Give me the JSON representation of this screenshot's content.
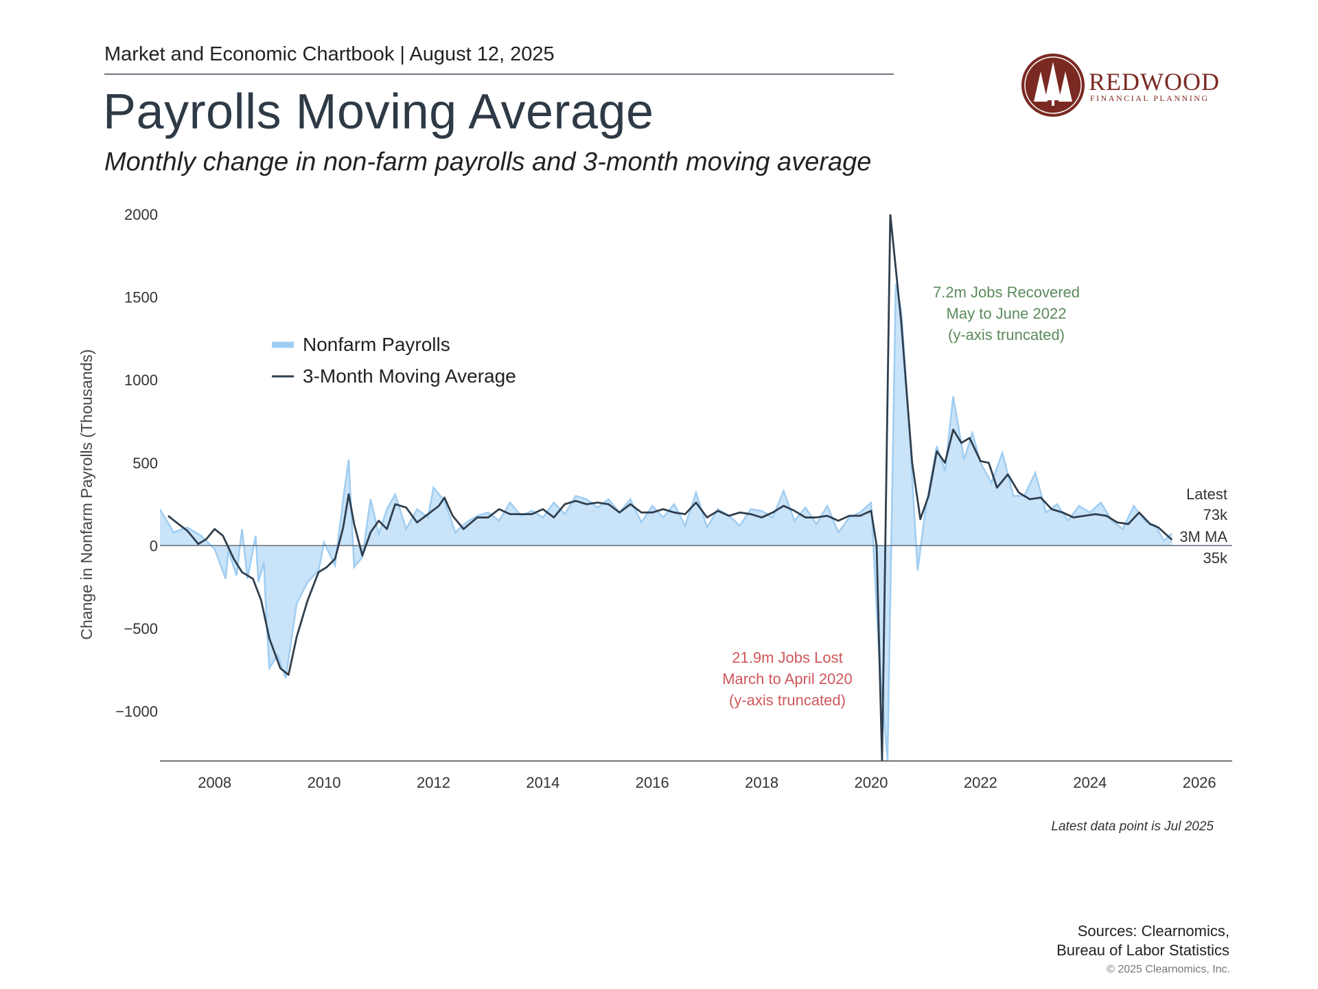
{
  "header": {
    "chartbook": "Market and Economic Chartbook | August 12, 2025",
    "title": "Payrolls Moving Average",
    "subtitle": "Monthly change in non-farm payrolls and 3-month moving average"
  },
  "logo": {
    "name": "REDWOOD",
    "tagline": "FINANCIAL PLANNING",
    "color": "#7a2a22"
  },
  "footer": {
    "latest_note": "Latest data point is Jul 2025",
    "sources_line1": "Sources: Clearnomics,",
    "sources_line2": "Bureau of Labor Statistics",
    "copyright": "© 2025 Clearnomics, Inc."
  },
  "chart_data": {
    "type": "area",
    "ylabel": "Change in Nonfarm Payrolls (Thousands)",
    "ylim": [
      -1300,
      2000
    ],
    "xlim": [
      2007.0,
      2026.6
    ],
    "yticks": [
      2000,
      1500,
      1000,
      500,
      0,
      -500,
      -1000
    ],
    "ytick_labels": [
      "2000",
      "1500",
      "1000",
      "500",
      "0",
      "−500",
      "−1000"
    ],
    "xticks": [
      2008,
      2010,
      2012,
      2014,
      2016,
      2018,
      2020,
      2022,
      2024,
      2026
    ],
    "xtick_labels": [
      "2008",
      "2010",
      "2012",
      "2014",
      "2016",
      "2018",
      "2020",
      "2022",
      "2024",
      "2026"
    ],
    "grid": false,
    "legend": {
      "position": "upper-left",
      "entries": [
        "Nonfarm Payrolls",
        "3-Month Moving Average"
      ]
    },
    "colors": {
      "payrolls_fill": "#c9e3f8",
      "payrolls_line": "#9fcdf2",
      "ma_line": "#2f3e4d",
      "loss_text": "#d0575a",
      "gain_text": "#5a8a5a"
    },
    "annotations": {
      "gain": [
        "7.2m Jobs Recovered",
        "May to June 2022",
        "(y-axis truncated)"
      ],
      "loss": [
        "21.9m Jobs Lost",
        "March to April 2020",
        "(y-axis truncated)"
      ],
      "latest": [
        "Latest",
        "73k",
        "3M MA",
        "35k"
      ]
    },
    "series": [
      {
        "name": "Nonfarm Payrolls",
        "points": [
          [
            2007.0,
            220
          ],
          [
            2007.25,
            80
          ],
          [
            2007.5,
            110
          ],
          [
            2007.75,
            60
          ],
          [
            2008.0,
            -20
          ],
          [
            2008.25,
            -30
          ],
          [
            2008.5,
            100
          ],
          [
            2008.75,
            60
          ],
          [
            2008.9,
            -100
          ],
          [
            2008.2,
            -200
          ],
          [
            2008.4,
            -180
          ],
          [
            2008.6,
            -200
          ],
          [
            2008.8,
            -220
          ],
          [
            2008.95,
            -470
          ],
          [
            2009.0,
            -740
          ],
          [
            2009.15,
            -660
          ],
          [
            2009.3,
            -800
          ],
          [
            2009.5,
            -350
          ],
          [
            2009.7,
            -220
          ],
          [
            2009.9,
            -150
          ],
          [
            2010.0,
            20
          ],
          [
            2010.2,
            -120
          ],
          [
            2010.35,
            280
          ],
          [
            2010.45,
            520
          ],
          [
            2010.55,
            -130
          ],
          [
            2010.7,
            -70
          ],
          [
            2010.85,
            280
          ],
          [
            2011.0,
            70
          ],
          [
            2011.15,
            220
          ],
          [
            2011.3,
            310
          ],
          [
            2011.5,
            100
          ],
          [
            2011.7,
            220
          ],
          [
            2011.9,
            170
          ],
          [
            2012.0,
            350
          ],
          [
            2012.2,
            270
          ],
          [
            2012.4,
            80
          ],
          [
            2012.6,
            140
          ],
          [
            2012.8,
            180
          ],
          [
            2013.0,
            200
          ],
          [
            2013.2,
            150
          ],
          [
            2013.4,
            260
          ],
          [
            2013.6,
            180
          ],
          [
            2013.8,
            210
          ],
          [
            2014.0,
            170
          ],
          [
            2014.2,
            260
          ],
          [
            2014.4,
            190
          ],
          [
            2014.6,
            300
          ],
          [
            2014.8,
            280
          ],
          [
            2015.0,
            230
          ],
          [
            2015.2,
            280
          ],
          [
            2015.4,
            200
          ],
          [
            2015.6,
            280
          ],
          [
            2015.8,
            140
          ],
          [
            2016.0,
            240
          ],
          [
            2016.2,
            170
          ],
          [
            2016.4,
            250
          ],
          [
            2016.6,
            120
          ],
          [
            2016.8,
            320
          ],
          [
            2017.0,
            110
          ],
          [
            2017.2,
            220
          ],
          [
            2017.4,
            180
          ],
          [
            2017.6,
            120
          ],
          [
            2017.8,
            220
          ],
          [
            2018.0,
            210
          ],
          [
            2018.2,
            170
          ],
          [
            2018.4,
            330
          ],
          [
            2018.6,
            150
          ],
          [
            2018.8,
            230
          ],
          [
            2019.0,
            130
          ],
          [
            2019.2,
            240
          ],
          [
            2019.4,
            80
          ],
          [
            2019.6,
            170
          ],
          [
            2019.8,
            200
          ],
          [
            2020.0,
            260
          ],
          [
            2020.15,
            -700
          ],
          [
            2020.3,
            -1300
          ],
          [
            2020.45,
            1580
          ],
          [
            2020.55,
            1420
          ],
          [
            2020.7,
            700
          ],
          [
            2020.85,
            -150
          ],
          [
            2021.0,
            230
          ],
          [
            2021.2,
            600
          ],
          [
            2021.35,
            450
          ],
          [
            2021.5,
            900
          ],
          [
            2021.7,
            520
          ],
          [
            2021.85,
            680
          ],
          [
            2022.0,
            500
          ],
          [
            2022.2,
            380
          ],
          [
            2022.4,
            560
          ],
          [
            2022.6,
            300
          ],
          [
            2022.8,
            300
          ],
          [
            2023.0,
            440
          ],
          [
            2023.2,
            200
          ],
          [
            2023.4,
            250
          ],
          [
            2023.6,
            150
          ],
          [
            2023.8,
            240
          ],
          [
            2024.0,
            200
          ],
          [
            2024.2,
            260
          ],
          [
            2024.4,
            150
          ],
          [
            2024.6,
            100
          ],
          [
            2024.8,
            240
          ],
          [
            2025.0,
            150
          ],
          [
            2025.2,
            120
          ],
          [
            2025.35,
            30
          ],
          [
            2025.5,
            73
          ]
        ]
      },
      {
        "name": "3-Month Moving Average",
        "points": [
          [
            2007.15,
            180
          ],
          [
            2007.3,
            140
          ],
          [
            2007.5,
            90
          ],
          [
            2007.7,
            10
          ],
          [
            2007.85,
            40
          ],
          [
            2008.0,
            100
          ],
          [
            2008.15,
            60
          ],
          [
            2008.35,
            -80
          ],
          [
            2008.5,
            -160
          ],
          [
            2008.7,
            -200
          ],
          [
            2008.85,
            -330
          ],
          [
            2009.0,
            -560
          ],
          [
            2009.2,
            -740
          ],
          [
            2009.35,
            -780
          ],
          [
            2009.5,
            -550
          ],
          [
            2009.7,
            -330
          ],
          [
            2009.9,
            -160
          ],
          [
            2010.05,
            -130
          ],
          [
            2010.2,
            -80
          ],
          [
            2010.35,
            110
          ],
          [
            2010.45,
            310
          ],
          [
            2010.55,
            130
          ],
          [
            2010.7,
            -60
          ],
          [
            2010.85,
            80
          ],
          [
            2011.0,
            150
          ],
          [
            2011.15,
            100
          ],
          [
            2011.3,
            250
          ],
          [
            2011.5,
            230
          ],
          [
            2011.7,
            140
          ],
          [
            2011.9,
            190
          ],
          [
            2012.1,
            240
          ],
          [
            2012.2,
            290
          ],
          [
            2012.35,
            180
          ],
          [
            2012.55,
            100
          ],
          [
            2012.8,
            170
          ],
          [
            2013.0,
            170
          ],
          [
            2013.2,
            220
          ],
          [
            2013.4,
            190
          ],
          [
            2013.6,
            190
          ],
          [
            2013.8,
            190
          ],
          [
            2014.0,
            220
          ],
          [
            2014.2,
            170
          ],
          [
            2014.4,
            250
          ],
          [
            2014.6,
            270
          ],
          [
            2014.8,
            250
          ],
          [
            2015.0,
            260
          ],
          [
            2015.2,
            250
          ],
          [
            2015.4,
            200
          ],
          [
            2015.6,
            250
          ],
          [
            2015.8,
            200
          ],
          [
            2016.0,
            200
          ],
          [
            2016.2,
            220
          ],
          [
            2016.4,
            200
          ],
          [
            2016.6,
            190
          ],
          [
            2016.8,
            260
          ],
          [
            2017.0,
            170
          ],
          [
            2017.2,
            210
          ],
          [
            2017.4,
            180
          ],
          [
            2017.6,
            200
          ],
          [
            2017.8,
            190
          ],
          [
            2018.0,
            170
          ],
          [
            2018.2,
            200
          ],
          [
            2018.4,
            240
          ],
          [
            2018.6,
            210
          ],
          [
            2018.8,
            170
          ],
          [
            2019.0,
            170
          ],
          [
            2019.2,
            180
          ],
          [
            2019.4,
            150
          ],
          [
            2019.6,
            180
          ],
          [
            2019.8,
            180
          ],
          [
            2020.0,
            210
          ],
          [
            2020.1,
            0
          ],
          [
            2020.2,
            -1300
          ],
          [
            2020.35,
            2000
          ],
          [
            2020.55,
            1350
          ],
          [
            2020.75,
            500
          ],
          [
            2020.9,
            160
          ],
          [
            2021.05,
            300
          ],
          [
            2021.2,
            570
          ],
          [
            2021.35,
            500
          ],
          [
            2021.5,
            700
          ],
          [
            2021.65,
            620
          ],
          [
            2021.8,
            650
          ],
          [
            2022.0,
            510
          ],
          [
            2022.15,
            500
          ],
          [
            2022.3,
            350
          ],
          [
            2022.5,
            430
          ],
          [
            2022.7,
            320
          ],
          [
            2022.9,
            280
          ],
          [
            2023.1,
            290
          ],
          [
            2023.3,
            220
          ],
          [
            2023.5,
            200
          ],
          [
            2023.7,
            170
          ],
          [
            2023.9,
            180
          ],
          [
            2024.1,
            190
          ],
          [
            2024.3,
            180
          ],
          [
            2024.5,
            140
          ],
          [
            2024.7,
            130
          ],
          [
            2024.9,
            200
          ],
          [
            2025.1,
            130
          ],
          [
            2025.25,
            110
          ],
          [
            2025.5,
            35
          ]
        ]
      }
    ]
  }
}
